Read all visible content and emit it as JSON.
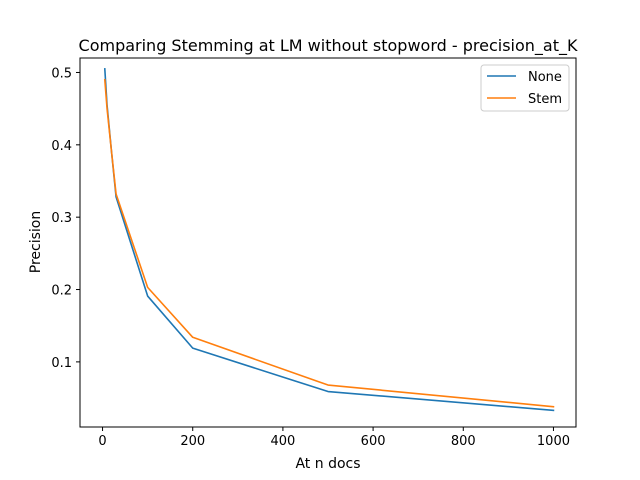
{
  "chart_data": {
    "type": "line",
    "title": "Comparing Stemming at LM without stopword - precision_at_K",
    "xlabel": "At n docs",
    "ylabel": "Precision",
    "xlim": [
      -50,
      1050
    ],
    "ylim": [
      0.01,
      0.52
    ],
    "xticks": [
      0,
      200,
      400,
      600,
      800,
      1000
    ],
    "xtick_labels": [
      "0",
      "200",
      "400",
      "600",
      "800",
      "1000"
    ],
    "yticks": [
      0.1,
      0.2,
      0.3,
      0.4,
      0.5
    ],
    "ytick_labels": [
      "0.1",
      "0.2",
      "0.3",
      "0.4",
      "0.5"
    ],
    "grid": false,
    "legend_position": "top-right",
    "x": [
      5,
      10,
      20,
      30,
      100,
      200,
      500,
      1000
    ],
    "series": [
      {
        "name": "None",
        "color": "#1f77b4",
        "values": [
          0.505,
          0.455,
          0.39,
          0.328,
          0.191,
          0.119,
          0.059,
          0.033
        ]
      },
      {
        "name": "Stem",
        "color": "#ff7f0e",
        "values": [
          0.49,
          0.45,
          0.39,
          0.332,
          0.203,
          0.134,
          0.068,
          0.038
        ]
      }
    ]
  }
}
